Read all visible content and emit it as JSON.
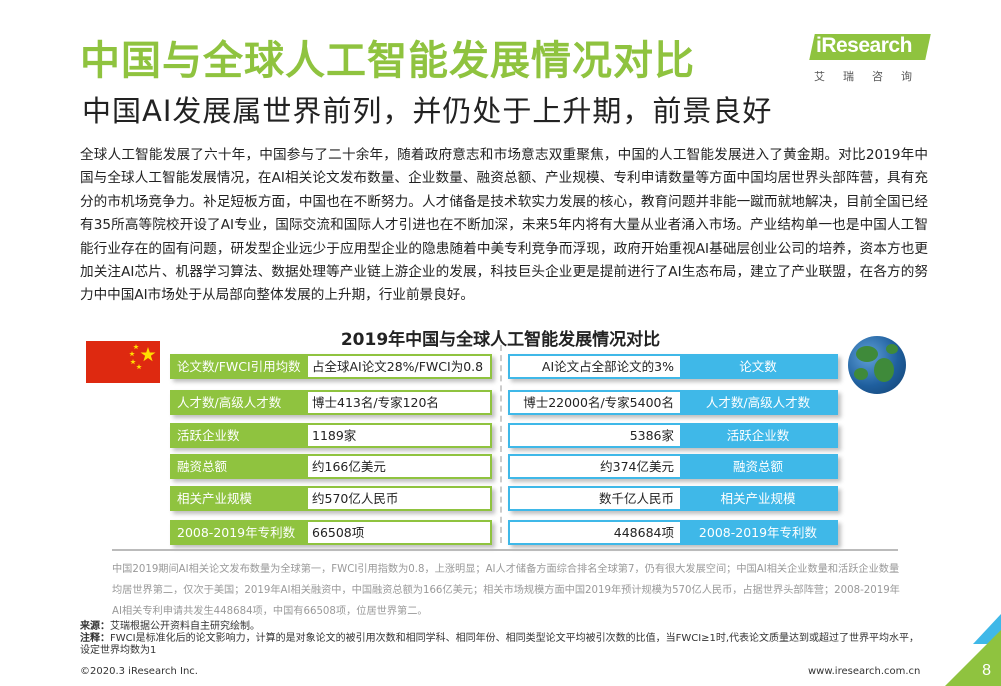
{
  "title": "中国与全球人工智能发展情况对比",
  "subtitle": "中国AI发展属世界前列，并仍处于上升期，前景良好",
  "logo": {
    "brand": "iResearch",
    "cn": "艾瑞咨询"
  },
  "body_text": "全球人工智能发展了六十年，中国参与了二十余年，随着政府意志和市场意志双重聚焦，中国的人工智能发展进入了黄金期。对比2019年中国与全球人工智能发展情况，在AI相关论文发布数量、企业数量、融资总额、产业规模、专利申请数量等方面中国均居世界头部阵营，具有充分的市机场竞争力。补足短板方面，中国也在不断努力。人才储备是技术软实力发展的核心，教育问题并非能一蹴而就地解决，目前全国已经有35所高等院校开设了AI专业，国际交流和国际人才引进也在不断加深，未来5年内将有大量从业者涌入市场。产业结构单一也是中国人工智能行业存在的固有问题，研发型企业远少于应用型企业的隐患随着中美专利竞争而浮现，政府开始重视AI基础层创业公司的培养，资本方也更加关注AI芯片、机器学习算法、数据处理等产业链上游企业的发展，科技巨头企业更是提前进行了AI生态布局，建立了产业联盟，在各方的努力中中国AI市场处于从局部向整体发展的上升期，行业前景良好。",
  "table_title": "2019年中国与全球人工智能发展情况对比",
  "china_rows": [
    {
      "label": "论文数/FWCI引用均数",
      "value": "占全球AI论文28%/FWCI为0.8"
    },
    {
      "label": "人才数/高级人才数",
      "value": "博士413名/专家120名"
    },
    {
      "label": "活跃企业数",
      "value": "1189家"
    },
    {
      "label": "融资总额",
      "value": "约166亿美元"
    },
    {
      "label": "相关产业规模",
      "value": "约570亿人民币"
    },
    {
      "label": "2008-2019年专利数",
      "value": "66508项"
    }
  ],
  "global_rows": [
    {
      "label": "论文数",
      "value": "AI论文占全部论文的3%"
    },
    {
      "label": "人才数/高级人才数",
      "value": "博士22000名/专家5400名"
    },
    {
      "label": "活跃企业数",
      "value": "5386家"
    },
    {
      "label": "融资总额",
      "value": "约374亿美元"
    },
    {
      "label": "相关产业规模",
      "value": "数千亿人民币"
    },
    {
      "label": "2008-2019年专利数",
      "value": "448684项"
    }
  ],
  "note": "中国2019期间AI相关论文发布数量为全球第一，FWCI引用指数为0.8，上涨明显；AI人才储备方面综合排名全球第7，仍有很大发展空间；中国AI相关企业数量和活跃企业数量均居世界第二，仅次于美国；2019年AI相关融资中，中国融资总额为166亿美元；相关市场规模方面中国2019年预计规模为570亿人民币，占据世界头部阵营；2008-2019年AI相关专利申请共发生448684项，中国有66508项，位居世界第二。",
  "source_label": "来源：",
  "source_text": "艾瑞根据公开资料自主研究绘制。",
  "remark_label": "注释：",
  "remark_text": "FWCI是标准化后的论文影响力，计算的是对象论文的被引用次数和相同学科、相同年份、相同类型论文平均被引次数的比值，当FWCI≥1时,代表论文质量达到或超过了世界平均水平，设定世界均数为1",
  "footer_left": "©2020.3 iResearch Inc.",
  "footer_right": "www.iresearch.com.cn",
  "page_number": "8",
  "colors": {
    "accent_green": "#8fc33f",
    "accent_blue": "#3fb8e8",
    "flag_red": "#de2910",
    "star_yellow": "#ffde00"
  }
}
